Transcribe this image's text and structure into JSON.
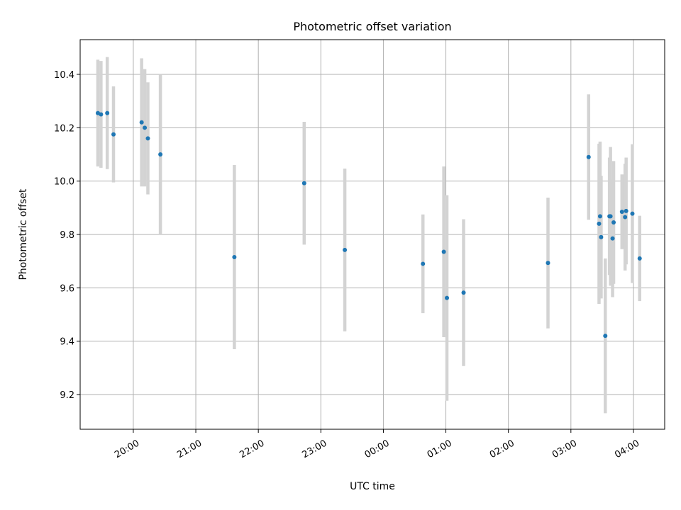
{
  "chart_data": {
    "type": "scatter",
    "title": "Photometric offset variation",
    "xlabel": "UTC time",
    "ylabel": "Photometric offset",
    "x_reference_time": "19:00",
    "xlim_minutes": [
      9,
      570
    ],
    "ylim": [
      9.07,
      10.53
    ],
    "x_ticks_minutes": [
      60,
      120,
      180,
      240,
      300,
      360,
      420,
      480,
      540
    ],
    "x_tick_labels": [
      "20:00",
      "21:00",
      "22:00",
      "23:00",
      "00:00",
      "01:00",
      "02:00",
      "03:00",
      "04:00"
    ],
    "y_ticks": [
      9.2,
      9.4,
      9.6,
      9.8,
      10.0,
      10.2,
      10.4
    ],
    "y_tick_labels": [
      "9.2",
      "9.4",
      "9.6",
      "9.8",
      "10.0",
      "10.2",
      "10.4"
    ],
    "grid": true,
    "marker_color": "#1f77b4",
    "errorbar_color": "#d3d3d3",
    "points": [
      {
        "t": 26,
        "y": 10.255,
        "err": 0.2
      },
      {
        "t": 29,
        "y": 10.25,
        "err": 0.2
      },
      {
        "t": 35,
        "y": 10.255,
        "err": 0.21
      },
      {
        "t": 41,
        "y": 10.175,
        "err": 0.18
      },
      {
        "t": 68,
        "y": 10.22,
        "err": 0.24
      },
      {
        "t": 71,
        "y": 10.2,
        "err": 0.22
      },
      {
        "t": 74,
        "y": 10.16,
        "err": 0.21
      },
      {
        "t": 86,
        "y": 10.1,
        "err": 0.3
      },
      {
        "t": 157,
        "y": 9.715,
        "err": 0.345
      },
      {
        "t": 224,
        "y": 9.992,
        "err": 0.23
      },
      {
        "t": 263,
        "y": 9.742,
        "err": 0.305
      },
      {
        "t": 338,
        "y": 9.69,
        "err": 0.185
      },
      {
        "t": 358,
        "y": 9.735,
        "err": 0.32
      },
      {
        "t": 361,
        "y": 9.562,
        "err": 0.385
      },
      {
        "t": 377,
        "y": 9.582,
        "err": 0.275
      },
      {
        "t": 458,
        "y": 9.693,
        "err": 0.245
      },
      {
        "t": 497,
        "y": 10.09,
        "err": 0.235
      },
      {
        "t": 507,
        "y": 9.84,
        "err": 0.3
      },
      {
        "t": 508,
        "y": 9.868,
        "err": 0.28
      },
      {
        "t": 509,
        "y": 9.79,
        "err": 0.23
      },
      {
        "t": 513,
        "y": 9.42,
        "err": 0.29
      },
      {
        "t": 517,
        "y": 9.868,
        "err": 0.22
      },
      {
        "t": 518,
        "y": 9.868,
        "err": 0.26
      },
      {
        "t": 520,
        "y": 9.785,
        "err": 0.22
      },
      {
        "t": 521,
        "y": 9.845,
        "err": 0.23
      },
      {
        "t": 529,
        "y": 9.885,
        "err": 0.14
      },
      {
        "t": 532,
        "y": 9.865,
        "err": 0.2
      },
      {
        "t": 533,
        "y": 9.888,
        "err": 0.2
      },
      {
        "t": 539,
        "y": 9.878,
        "err": 0.26
      },
      {
        "t": 546,
        "y": 9.71,
        "err": 0.16
      }
    ]
  }
}
